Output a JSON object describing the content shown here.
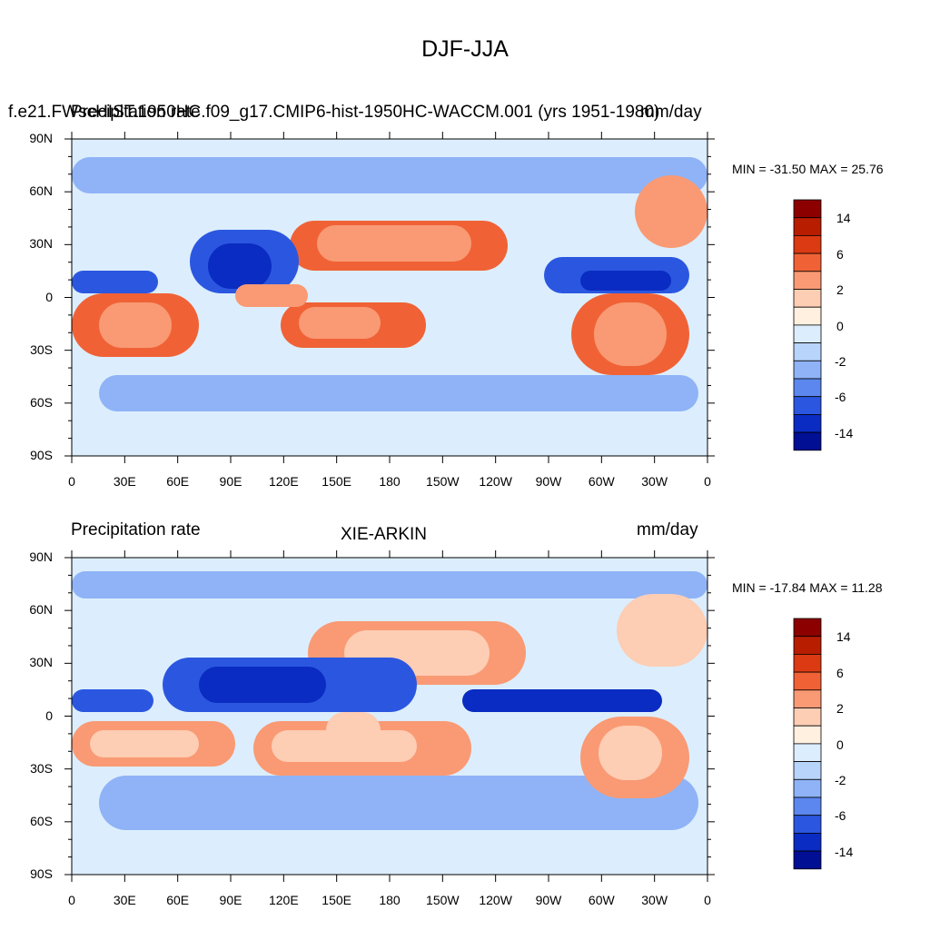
{
  "figure": {
    "title": "DJF-JJA"
  },
  "panels": [
    {
      "left_title": "f.e21.FWscHIST.1950HC.f09_g17.CMIP6-hist-1950HC-WACCM.001 (yrs 1951-1980)",
      "left_title_overlap": "Precipitation rate",
      "center_title": "",
      "right_title": "mm/day",
      "minmax_text": "MIN = -31.50 MAX =  25.76"
    },
    {
      "left_title": "Precipitation rate",
      "center_title": "XIE-ARKIN",
      "right_title": "mm/day",
      "minmax_text": "MIN = -17.84 MAX =  11.28"
    }
  ],
  "axes": {
    "lat_labels": [
      "90N",
      "60N",
      "30N",
      "0",
      "30S",
      "60S",
      "90S"
    ],
    "lon_labels": [
      "0",
      "30E",
      "60E",
      "90E",
      "120E",
      "150E",
      "180",
      "150W",
      "120W",
      "90W",
      "60W",
      "30W",
      "0"
    ]
  },
  "colorbar": {
    "colors": [
      "#8c0000",
      "#b81d00",
      "#dc3a12",
      "#f06236",
      "#f99a74",
      "#fdcdb4",
      "#fff0e0",
      "#dceefd",
      "#b8d4fb",
      "#8fb3f6",
      "#5b87ee",
      "#2b57e0",
      "#0a2cc2",
      "#000f94"
    ],
    "labels": [
      "14",
      "6",
      "2",
      "0",
      "-2",
      "-6",
      "-14"
    ]
  }
}
